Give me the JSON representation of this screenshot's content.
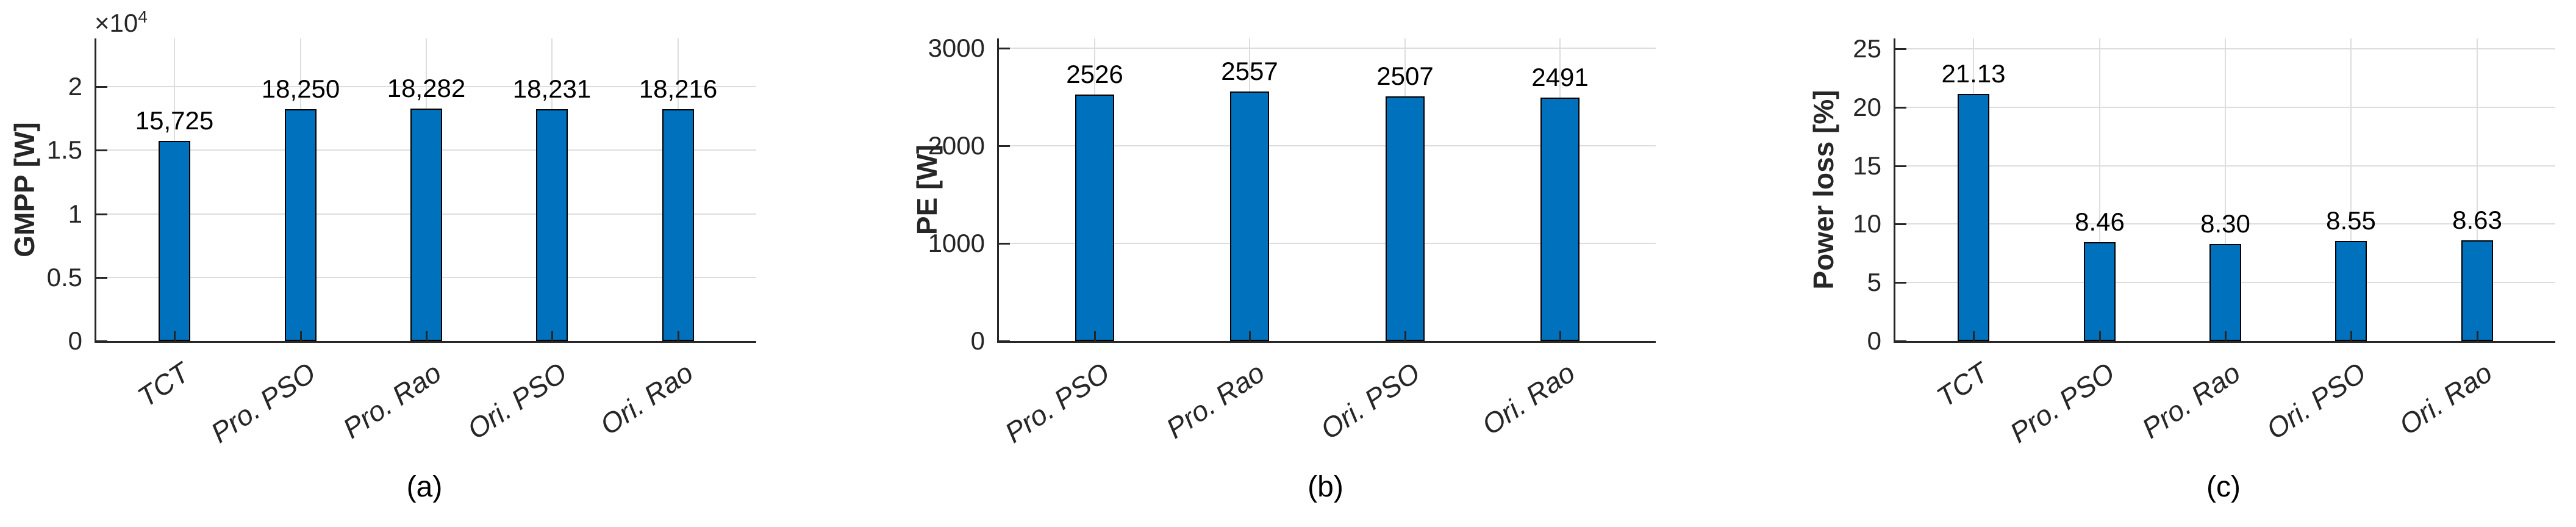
{
  "figure": {
    "background": "#FFFFFF"
  },
  "colors": {
    "bar_fill": "#0072BD",
    "bar_edge": "#000000",
    "axis": "#262626",
    "grid": "#DDDDDD",
    "tick_text": "#262626",
    "value_text": "#000000"
  },
  "chart_data": [
    {
      "type": "bar",
      "title": "(a)",
      "ylabel": "GMPP [W]",
      "xlabel": "",
      "categories": [
        "TCT",
        "Pro. PSO",
        "Pro. Rao",
        "Ori. PSO",
        "Ori. Rao"
      ],
      "values": [
        15725,
        18250,
        18282,
        18231,
        18216
      ],
      "bar_labels": [
        "15,725",
        "18,250",
        "18,282",
        "18,231",
        "18,216"
      ],
      "yticks": [
        0,
        5000,
        10000,
        15000,
        20000
      ],
      "ytick_labels": [
        "0",
        "0.5",
        "1",
        "1.5",
        "2"
      ],
      "offset_text": {
        "base": "×10",
        "exponent": "4"
      },
      "ylim": [
        0,
        23800
      ],
      "grid": true,
      "legend": "none"
    },
    {
      "type": "bar",
      "title": "(b)",
      "ylabel": "PE [W]",
      "xlabel": "",
      "categories": [
        "Pro. PSO",
        "Pro. Rao",
        "Ori. PSO",
        "Ori. Rao"
      ],
      "values": [
        2526,
        2557,
        2507,
        2491
      ],
      "bar_labels": [
        "2526",
        "2557",
        "2507",
        "2491"
      ],
      "yticks": [
        0,
        1000,
        2000,
        3000
      ],
      "ytick_labels": [
        "0",
        "1000",
        "2000",
        "3000"
      ],
      "ylim": [
        0,
        3100
      ],
      "grid": true,
      "legend": "none"
    },
    {
      "type": "bar",
      "title": "(c)",
      "ylabel": "Power loss [%]",
      "xlabel": "",
      "categories": [
        "TCT",
        "Pro. PSO",
        "Pro. Rao",
        "Ori. PSO",
        "Ori. Rao"
      ],
      "values": [
        21.13,
        8.46,
        8.3,
        8.55,
        8.63
      ],
      "bar_labels": [
        "21.13",
        "8.46",
        "8.30",
        "8.55",
        "8.63"
      ],
      "yticks": [
        0,
        5,
        10,
        15,
        20,
        25
      ],
      "ytick_labels": [
        "0",
        "5",
        "10",
        "15",
        "20",
        "25"
      ],
      "ylim": [
        0,
        25.9
      ],
      "grid": true,
      "legend": "none"
    }
  ]
}
